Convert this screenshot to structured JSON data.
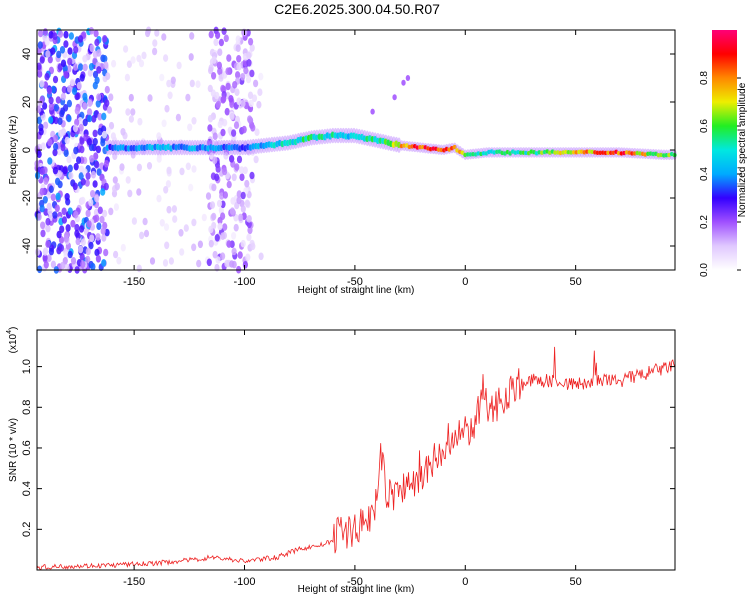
{
  "chart_data": [
    {
      "type": "heatmap",
      "title": "C2E6.2025.300.04.50.R07",
      "xlabel": "Height of straight line (km)",
      "ylabel": "Frequency (Hz)",
      "xlim": [
        -194,
        95
      ],
      "ylim": [
        -50,
        50
      ],
      "x_ticks": [
        -150,
        -100,
        -50,
        0,
        50
      ],
      "x_tick_labels": [
        "-150",
        "-100",
        "-50",
        "0",
        "50"
      ],
      "y_ticks": [
        -40,
        -20,
        0,
        20,
        40
      ],
      "y_tick_labels": [
        "-40",
        "-20",
        "0",
        "20",
        "40"
      ],
      "colorbar": {
        "label": "Normalized spectral amplitude",
        "range": [
          0,
          1
        ],
        "ticks": [
          0,
          0.2,
          0.4,
          0.6,
          0.8
        ],
        "tick_labels": [
          "0.0",
          "0.2",
          "0.4",
          "0.6",
          "0.8"
        ],
        "colors": [
          "#ffffff",
          "#e0c8ff",
          "#a050ff",
          "#3300ff",
          "#00aaff",
          "#00e8e0",
          "#22ee22",
          "#eeee00",
          "#ff8800",
          "#ff0000",
          "#ff0077"
        ]
      },
      "ridge": {
        "x": [
          -160,
          -140,
          -120,
          -100,
          -80,
          -70,
          -60,
          -50,
          -45,
          -40,
          -30,
          -20,
          -10,
          -5,
          0,
          10,
          30,
          50,
          70,
          90
        ],
        "frequency": [
          1,
          1,
          1,
          1,
          3,
          5,
          6,
          6,
          5,
          4,
          2,
          1,
          0,
          1,
          -2,
          -1,
          -1,
          -1,
          -1,
          -2
        ],
        "amplitude": [
          0.35,
          0.4,
          0.4,
          0.35,
          0.5,
          0.55,
          0.5,
          0.45,
          0.5,
          0.55,
          0.7,
          0.85,
          0.95,
          0.9,
          0.6,
          0.5,
          0.55,
          0.7,
          0.85,
          0.6
        ]
      },
      "grid": false
    },
    {
      "type": "line",
      "xlabel": "Height of straight line (km)",
      "ylabel": "SNR (10 * v/v)",
      "scale_label": "(x10",
      "scale_exp": "4",
      "xlim": [
        -194,
        95
      ],
      "ylim": [
        0,
        1.18
      ],
      "x_ticks": [
        -150,
        -100,
        -50,
        0,
        50
      ],
      "x_tick_labels": [
        "-150",
        "-100",
        "-50",
        "0",
        "50"
      ],
      "y_ticks": [
        0.2,
        0.4,
        0.6,
        0.8,
        1.0
      ],
      "y_tick_labels": [
        "0.2",
        "0.4",
        "0.6",
        "0.8",
        "1.0"
      ],
      "series": [
        {
          "color": "#ee2222",
          "x": [
            -194,
            -180,
            -160,
            -140,
            -120,
            -115,
            -100,
            -85,
            -75,
            -65,
            -55,
            -45,
            -40,
            -38,
            -36,
            -30,
            -25,
            -20,
            -15,
            -10,
            -5,
            0,
            5,
            8,
            10,
            15,
            20,
            25,
            30,
            40,
            50,
            60,
            70,
            80,
            90,
            95
          ],
          "values": [
            0.01,
            0.015,
            0.02,
            0.03,
            0.05,
            0.06,
            0.04,
            0.06,
            0.1,
            0.12,
            0.16,
            0.2,
            0.3,
            0.55,
            0.35,
            0.35,
            0.4,
            0.42,
            0.5,
            0.55,
            0.6,
            0.65,
            0.7,
            0.85,
            0.75,
            0.8,
            0.85,
            0.9,
            0.92,
            0.92,
            0.9,
            0.92,
            0.92,
            0.95,
            0.98,
            1.0
          ]
        }
      ],
      "grid": false
    }
  ]
}
